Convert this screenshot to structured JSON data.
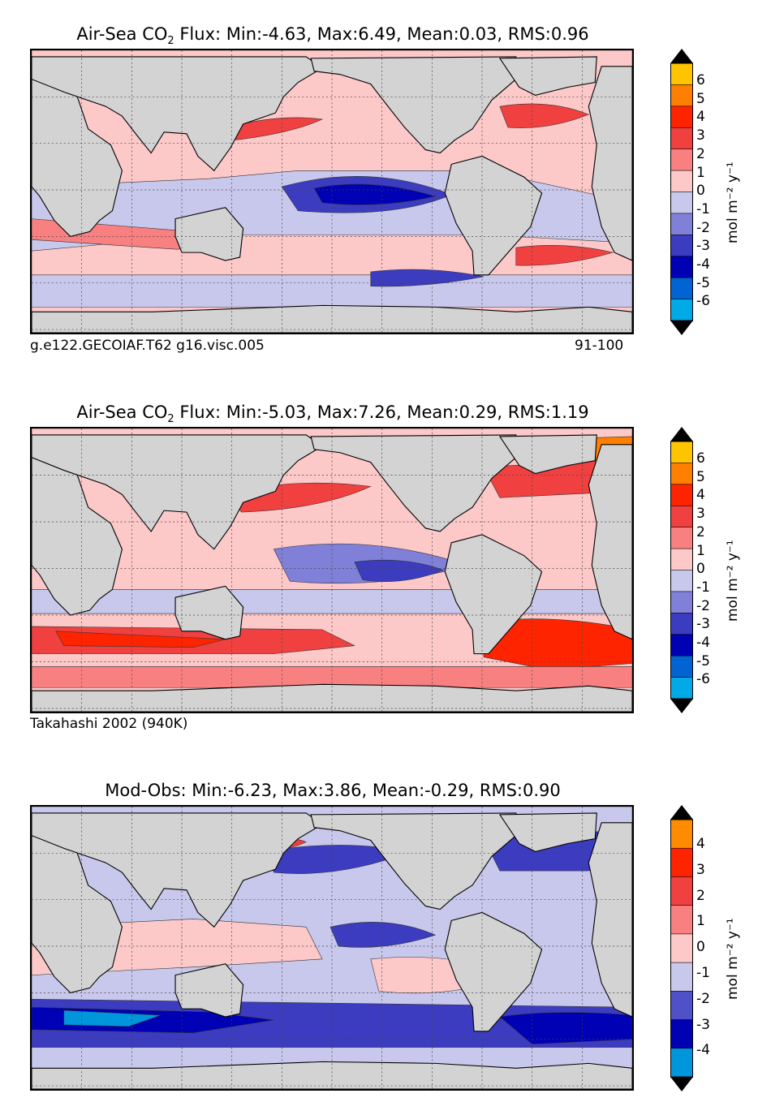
{
  "panels": [
    {
      "id": "model",
      "title_prefix": "Air-Sea CO",
      "title_sub": "2",
      "title_suffix": " Flux: Min:-4.63, Max:6.49, Mean:0.03, RMS:0.96",
      "caption_left": "g.e122.GECOIAF.T62 g16.visc.005",
      "caption_right": "91-100",
      "colorbar": {
        "ticks": [
          "6",
          "5",
          "4",
          "3",
          "2",
          "1",
          "0",
          "-1",
          "-2",
          "-3",
          "-4",
          "-5",
          "-6"
        ],
        "colors": [
          "#ffff00",
          "#ffc400",
          "#ff7f00",
          "#ff2400",
          "#f04040",
          "#f88080",
          "#fcc8c8",
          "#c8c8ec",
          "#8080d8",
          "#3c3cc0",
          "#0000b4",
          "#0064d2",
          "#00aae6",
          "#00ffff"
        ],
        "units": "mol m⁻² y⁻¹"
      }
    },
    {
      "id": "obs",
      "title_prefix": "Air-Sea CO",
      "title_sub": "2",
      "title_suffix": " Flux: Min:-5.03, Max:7.26, Mean:0.29, RMS:1.19",
      "caption_left": "Takahashi 2002 (940K)",
      "caption_right": "",
      "colorbar": {
        "ticks": [
          "6",
          "5",
          "4",
          "3",
          "2",
          "1",
          "0",
          "-1",
          "-2",
          "-3",
          "-4",
          "-5",
          "-6"
        ],
        "colors": [
          "#ffff00",
          "#ffc400",
          "#ff7f00",
          "#ff2400",
          "#f04040",
          "#f88080",
          "#fcc8c8",
          "#c8c8ec",
          "#8080d8",
          "#3c3cc0",
          "#0000b4",
          "#0064d2",
          "#00aae6",
          "#00ffff"
        ],
        "units": "mol m⁻² y⁻¹"
      }
    },
    {
      "id": "diff",
      "title_prefix": "Mod-Obs: Min:-6.23, Max:3.86, Mean:-0.29, RMS:0.90",
      "title_sub": "",
      "title_suffix": "",
      "caption_left": "",
      "caption_right": "",
      "colorbar": {
        "ticks": [
          "4",
          "3",
          "2",
          "1",
          "0",
          "-1",
          "-2",
          "-3",
          "-4"
        ],
        "colors": [
          "#ffff00",
          "#ff8c00",
          "#ff2400",
          "#f04040",
          "#f88080",
          "#fcc8c8",
          "#c8c8ec",
          "#5050c8",
          "#0000b4",
          "#0096dc",
          "#00ffff"
        ],
        "units": "mol m⁻² y⁻¹"
      }
    }
  ]
}
